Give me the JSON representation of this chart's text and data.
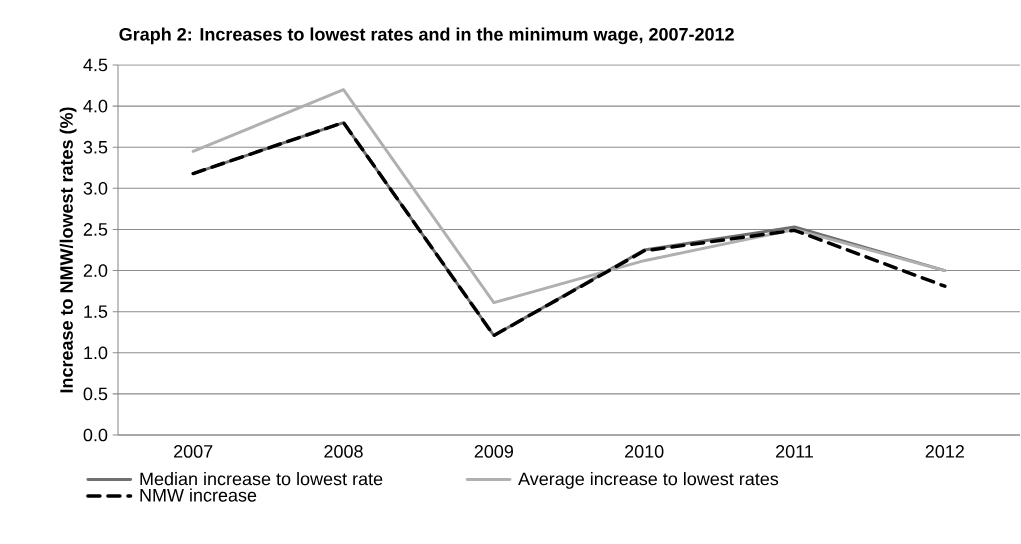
{
  "chart_data": {
    "type": "line",
    "title": "Graph 2: Increases to lowest rates and in the minimum wage, 2007-2012",
    "ylabel": "Increase to NMW/lowest rates (%)",
    "categories": [
      "2007",
      "2008",
      "2009",
      "2010",
      "2011",
      "2012"
    ],
    "series": [
      {
        "name": "Median increase to lowest rate",
        "color": "#707070",
        "values": [
          3.18,
          3.8,
          1.21,
          2.25,
          2.53,
          2.0
        ]
      },
      {
        "name": "Average increase to lowest rates",
        "color": "#b0b0b0",
        "values": [
          3.45,
          4.2,
          1.61,
          2.12,
          2.5,
          2.0
        ]
      },
      {
        "name": "NMW increase",
        "color": "#000000",
        "line_style": "dashed",
        "values": [
          3.18,
          3.8,
          1.21,
          2.24,
          2.49,
          1.81
        ]
      }
    ],
    "ylim": [
      0,
      4.5
    ],
    "yticks": [
      {
        "value": 0,
        "label": "0.0"
      },
      0.5,
      {
        "value": 1,
        "label": "1.0"
      },
      1.5,
      {
        "value": 2,
        "label": "2.0"
      },
      2.5,
      {
        "value": 3,
        "label": "3.0"
      },
      3.5,
      {
        "value": 4,
        "label": "4.0"
      },
      4.5
    ],
    "grid": "y",
    "legend": "bottom",
    "marker": "none"
  }
}
